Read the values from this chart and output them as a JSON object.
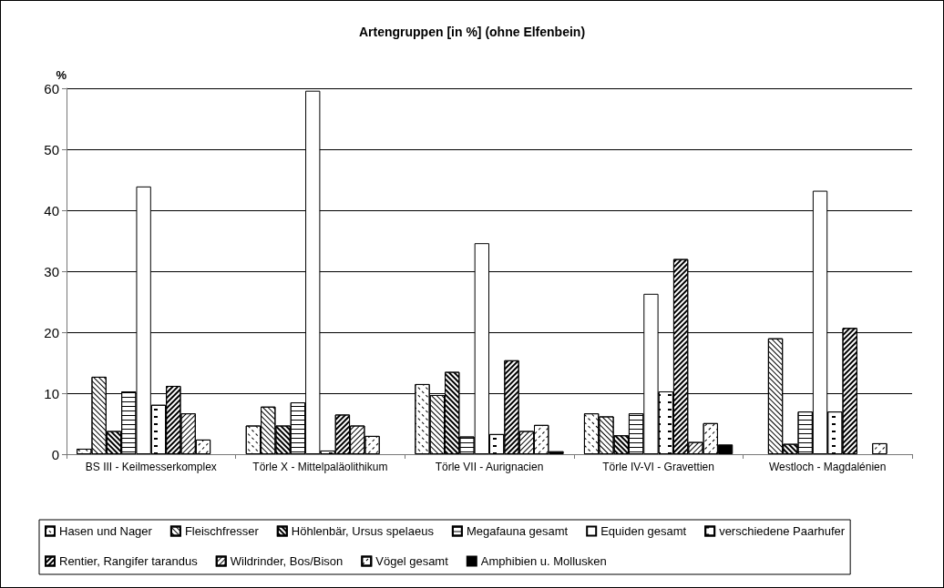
{
  "chart_data": {
    "type": "bar",
    "title": "Artengruppen [in %] (ohne Elfenbein)",
    "ylabel": "%",
    "categories": [
      "BS III - Keilmesserkomplex",
      "Törle X - Mittelpaläolithikum",
      "Törle VII - Aurignacien",
      "Törle IV-VI - Gravettien",
      "Westloch - Magdalénien"
    ],
    "series": [
      {
        "name": "Hasen und Nager",
        "color": "#ffffff",
        "values": [
          0.9,
          4.7,
          11.5,
          6.7,
          null
        ]
      },
      {
        "name": "Fleischfresser",
        "color": "#ffffff",
        "values": [
          12.7,
          7.8,
          9.7,
          6.2,
          19.0
        ]
      },
      {
        "name": "Höhlenbär, Ursus spelaeus",
        "color": "#ffffff",
        "values": [
          3.8,
          4.7,
          13.5,
          3.1,
          1.7
        ]
      },
      {
        "name": "Megafauna gesamt",
        "color": "#ffffff",
        "values": [
          10.3,
          8.5,
          2.9,
          6.7,
          7.0
        ]
      },
      {
        "name": "Equiden gesamt",
        "color": "#ffffff",
        "values": [
          43.9,
          59.6,
          34.6,
          26.3,
          43.2
        ]
      },
      {
        "name": "verschiedene Paarhufer",
        "color": "#ffffff",
        "values": [
          8.1,
          0.6,
          3.3,
          10.3,
          7.0
        ]
      },
      {
        "name": "Rentier, Rangifer tarandus",
        "color": "#ffffff",
        "values": [
          11.2,
          6.5,
          15.4,
          32.0,
          20.7
        ]
      },
      {
        "name": "Wildrinder, Bos/Bison",
        "color": "#ffffff",
        "values": [
          6.7,
          4.7,
          3.8,
          2.0,
          null
        ]
      },
      {
        "name": "Vögel gesamt",
        "color": "#ffffff",
        "values": [
          2.4,
          3.0,
          4.8,
          5.1,
          1.8
        ]
      },
      {
        "name": "Amphibien u. Mollusken",
        "color": "#000000",
        "values": [
          null,
          null,
          0.5,
          1.6,
          null
        ]
      }
    ],
    "ylim": [
      0,
      60
    ],
    "yticks": [
      0,
      10,
      20,
      30,
      40,
      50,
      60
    ],
    "grid": "y",
    "legend": "bottom"
  }
}
